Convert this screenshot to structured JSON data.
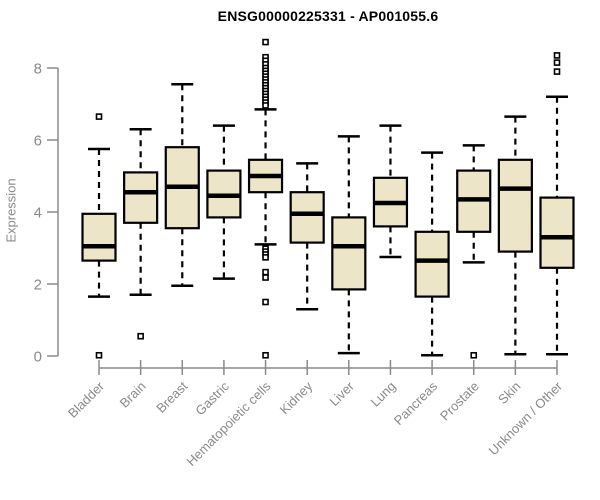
{
  "chart_data": {
    "type": "boxplot",
    "title": "ENSG00000225331 - AP001055.6",
    "ylabel": "Expression",
    "xlabel": "",
    "ylim": [
      0,
      8
    ],
    "yticks": [
      0,
      2,
      4,
      6,
      8
    ],
    "grid": false,
    "legend": "none",
    "categories": [
      "Bladder",
      "Brain",
      "Breast",
      "Gastric",
      "Hematopoietic cells",
      "Kidney",
      "Liver",
      "Lung",
      "Pancreas",
      "Prostate",
      "Skin",
      "Unknown / Other"
    ],
    "boxes": [
      {
        "category": "Bladder",
        "whisker_low": 1.65,
        "q1": 2.65,
        "median": 3.05,
        "q3": 3.95,
        "whisker_high": 5.75,
        "outliers": [
          6.65,
          0.02
        ]
      },
      {
        "category": "Brain",
        "whisker_low": 1.7,
        "q1": 3.7,
        "median": 4.55,
        "q3": 5.1,
        "whisker_high": 6.3,
        "outliers": [
          0.55
        ]
      },
      {
        "category": "Breast",
        "whisker_low": 1.95,
        "q1": 3.55,
        "median": 4.7,
        "q3": 5.8,
        "whisker_high": 7.55,
        "outliers": []
      },
      {
        "category": "Gastric",
        "whisker_low": 2.15,
        "q1": 3.85,
        "median": 4.45,
        "q3": 5.15,
        "whisker_high": 6.4,
        "outliers": []
      },
      {
        "category": "Hematopoietic cells",
        "whisker_low": 3.1,
        "q1": 4.55,
        "median": 5.0,
        "q3": 5.45,
        "whisker_high": 6.85,
        "outliers": [
          8.72,
          8.3,
          8.2,
          8.1,
          8.0,
          7.92,
          7.84,
          7.76,
          7.68,
          7.6,
          7.52,
          7.44,
          7.36,
          7.28,
          7.2,
          7.12,
          7.04,
          6.96,
          2.98,
          2.9,
          2.82,
          2.74,
          2.33,
          2.18,
          1.5,
          0.02
        ]
      },
      {
        "category": "Kidney",
        "whisker_low": 1.3,
        "q1": 3.15,
        "median": 3.95,
        "q3": 4.55,
        "whisker_high": 5.35,
        "outliers": []
      },
      {
        "category": "Liver",
        "whisker_low": 0.08,
        "q1": 1.85,
        "median": 3.05,
        "q3": 3.85,
        "whisker_high": 6.1,
        "outliers": []
      },
      {
        "category": "Lung",
        "whisker_low": 2.75,
        "q1": 3.6,
        "median": 4.25,
        "q3": 4.95,
        "whisker_high": 6.4,
        "outliers": []
      },
      {
        "category": "Pancreas",
        "whisker_low": 0.02,
        "q1": 1.65,
        "median": 2.65,
        "q3": 3.45,
        "whisker_high": 5.65,
        "outliers": []
      },
      {
        "category": "Prostate",
        "whisker_low": 2.6,
        "q1": 3.45,
        "median": 4.35,
        "q3": 5.15,
        "whisker_high": 5.85,
        "outliers": [
          0.02
        ]
      },
      {
        "category": "Skin",
        "whisker_low": 0.05,
        "q1": 2.9,
        "median": 4.65,
        "q3": 5.45,
        "whisker_high": 6.65,
        "outliers": []
      },
      {
        "category": "Unknown / Other",
        "whisker_low": 0.05,
        "q1": 2.45,
        "median": 3.3,
        "q3": 4.4,
        "whisker_high": 7.2,
        "outliers": [
          8.35,
          8.15,
          7.9
        ]
      }
    ],
    "colors": {
      "box_fill": "#ECE5C7",
      "box_stroke": "#000000",
      "median": "#000000",
      "whisker": "#000000",
      "outlier_fill": "#ffffff",
      "outlier_stroke": "#000000",
      "axis": "#8a8a8a",
      "tick_label": "#8a8a8a",
      "title": "#000000"
    }
  }
}
